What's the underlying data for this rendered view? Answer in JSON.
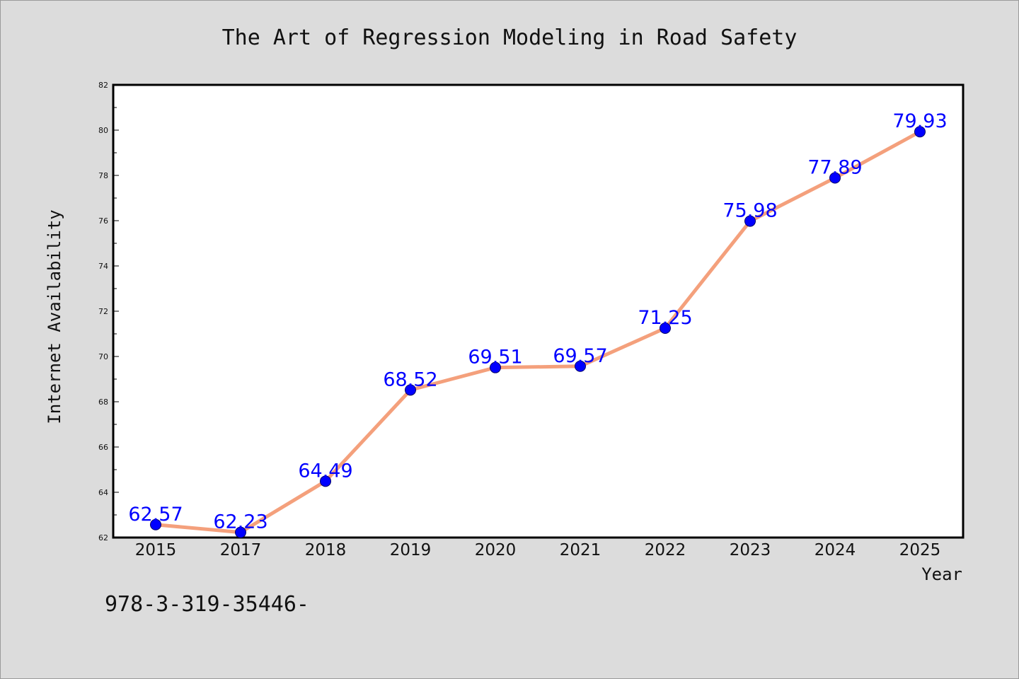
{
  "colors": {
    "background": "#dcdcdc",
    "plot_background": "#ffffff",
    "line": "#f4a07c",
    "marker": "#0000ff",
    "data_label": "#0000ff",
    "axis": "#000000"
  },
  "footer_text": "978-3-319-35446-",
  "chart_data": {
    "type": "line",
    "title": "The Art of Regression Modeling in Road Safety",
    "xlabel": "Year",
    "ylabel": "Internet Availability",
    "categories": [
      "2015",
      "2017",
      "2018",
      "2019",
      "2020",
      "2021",
      "2022",
      "2023",
      "2024",
      "2025"
    ],
    "series": [
      {
        "values": [
          62.57,
          62.23,
          64.49,
          68.52,
          69.51,
          69.57,
          71.25,
          75.98,
          77.89,
          79.93
        ],
        "labels": [
          "62.57",
          "62.23",
          "64.49",
          "68.52",
          "69.51",
          "69.57",
          "71.25",
          "75.98",
          "77.89",
          "79.93"
        ]
      }
    ],
    "ylim": [
      62,
      82
    ],
    "yticks": [
      62,
      64,
      66,
      68,
      70,
      72,
      74,
      76,
      78,
      80,
      82
    ],
    "ytick_labels": [
      "62",
      "64",
      "66",
      "68",
      "70",
      "72",
      "74",
      "76",
      "78",
      "80",
      "82"
    ],
    "grid": false,
    "legend": "none"
  }
}
